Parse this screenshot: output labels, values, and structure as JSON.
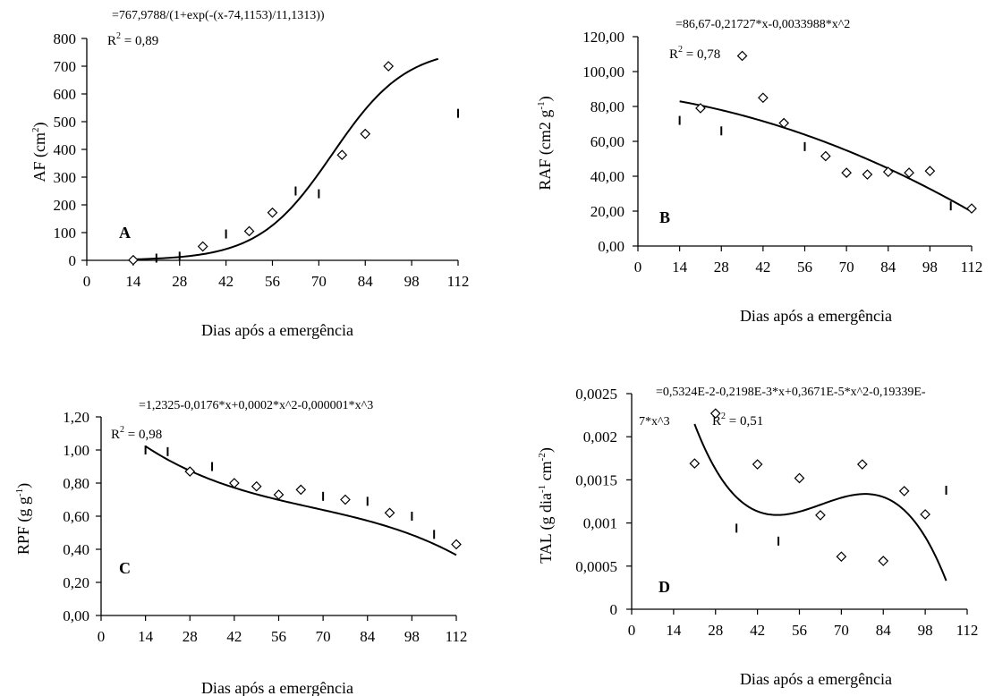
{
  "chart_data": [
    {
      "panel": "A",
      "type": "scatter",
      "equation": "=767,9788/(1+exp(-(x-74,1153)/11,1313))",
      "r2": "0,89",
      "r2_label": "R",
      "xlabel": "Dias após a emergência",
      "ylabel": "AF (cm",
      "ylabel_sup": "2",
      "ylabel_end": ")",
      "xlim": [
        0,
        112
      ],
      "ylim": [
        0,
        800
      ],
      "xticks": [
        "0",
        "14",
        "28",
        "42",
        "56",
        "70",
        "84",
        "98",
        "112"
      ],
      "yticks": [
        "0",
        "100",
        "200",
        "300",
        "400",
        "500",
        "600",
        "700",
        "800"
      ],
      "series": [
        {
          "marker": "diamond",
          "points": [
            [
              14,
              1
            ],
            [
              35,
              50
            ],
            [
              49,
              105
            ],
            [
              56,
              172
            ],
            [
              77,
              380
            ],
            [
              84,
              456
            ],
            [
              91,
              700
            ]
          ]
        },
        {
          "marker": "bar",
          "points": [
            [
              21,
              8
            ],
            [
              28,
              15
            ],
            [
              42,
              95
            ],
            [
              63,
              250
            ],
            [
              70,
              240
            ],
            [
              112,
              530
            ]
          ]
        }
      ],
      "curve": {
        "kind": "logistic",
        "a": 767.9788,
        "x0": 74.1153,
        "b": 11.1313,
        "from": 14,
        "to": 106
      }
    },
    {
      "panel": "B",
      "type": "scatter",
      "equation": "=86,67-0,21727*x-0,0033988*x^2",
      "r2": "0,78",
      "r2_label": "R",
      "xlabel": "Dias após a emergência",
      "ylabel": "RAF (cm2 g",
      "ylabel_sup": "-1",
      "ylabel_end": ")",
      "xlim": [
        0,
        112
      ],
      "ylim": [
        0,
        120
      ],
      "xticks": [
        "0",
        "14",
        "28",
        "42",
        "56",
        "70",
        "84",
        "98",
        "112"
      ],
      "yticks": [
        "0,00",
        "20,00",
        "40,00",
        "60,00",
        "80,00",
        "100,00",
        "120,00"
      ],
      "series": [
        {
          "marker": "diamond",
          "points": [
            [
              21,
              79
            ],
            [
              35,
              109
            ],
            [
              42,
              85
            ],
            [
              49,
              70.5
            ],
            [
              63,
              51.5
            ],
            [
              70,
              42
            ],
            [
              77,
              41
            ],
            [
              84,
              42.5
            ],
            [
              91,
              42
            ],
            [
              98,
              43
            ],
            [
              112,
              21.5
            ]
          ]
        },
        {
          "marker": "bar",
          "points": [
            [
              14,
              72
            ],
            [
              28,
              66
            ],
            [
              56,
              57
            ],
            [
              105,
              23
            ]
          ]
        }
      ],
      "curve": {
        "kind": "poly",
        "coefs": [
          86.67,
          -0.21727,
          -0.0033988
        ],
        "from": 14,
        "to": 112
      }
    },
    {
      "panel": "C",
      "type": "scatter",
      "equation": "=1,2325-0,0176*x+0,0002*x^2-0,000001*x^3",
      "r2": "0,98",
      "r2_label": "R",
      "xlabel": "Dias após a emergência",
      "ylabel": "RPF (g g",
      "ylabel_sup": "-1",
      "ylabel_end": ")",
      "xlim": [
        0,
        112
      ],
      "ylim": [
        0,
        1.2
      ],
      "xticks": [
        "0",
        "14",
        "28",
        "42",
        "56",
        "70",
        "84",
        "98",
        "112"
      ],
      "yticks": [
        "0,00",
        "0,20",
        "0,40",
        "0,60",
        "0,80",
        "1,00",
        "1,20"
      ],
      "series": [
        {
          "marker": "diamond",
          "points": [
            [
              28,
              0.87
            ],
            [
              42,
              0.8
            ],
            [
              49,
              0.78
            ],
            [
              56,
              0.73
            ],
            [
              63,
              0.76
            ],
            [
              77,
              0.7
            ],
            [
              91,
              0.62
            ],
            [
              112,
              0.43
            ]
          ]
        },
        {
          "marker": "bar",
          "points": [
            [
              14,
              1.0
            ],
            [
              21,
              0.99
            ],
            [
              35,
              0.9
            ],
            [
              70,
              0.72
            ],
            [
              84,
              0.69
            ],
            [
              98,
              0.6
            ],
            [
              105,
              0.49
            ]
          ]
        }
      ],
      "curve": {
        "kind": "poly",
        "coefs": [
          1.2325,
          -0.0176,
          0.0002,
          -1e-06
        ],
        "from": 14,
        "to": 112
      }
    },
    {
      "panel": "D",
      "type": "scatter",
      "equation": "=0,5324E-2-0,2198E-3*x+0,3671E-5*x^2-0,19339E-",
      "equation_cont": "7*x^3",
      "r2": "0,51",
      "r2_label": "R",
      "xlabel": "Dias após a emergência",
      "ylabel": "TAL (g dia",
      "ylabel_sup1": "-1",
      "ylabel_mid": " cm",
      "ylabel_sup2": "-2",
      "ylabel_end": ")",
      "xlim": [
        0,
        112
      ],
      "ylim": [
        0,
        0.0025
      ],
      "xticks": [
        "0",
        "14",
        "28",
        "42",
        "56",
        "70",
        "84",
        "98",
        "112"
      ],
      "yticks": [
        "0",
        "0,0005",
        "0,001",
        "0,0015",
        "0,002",
        "0,0025"
      ],
      "series": [
        {
          "marker": "diamond",
          "points": [
            [
              21,
              0.00169
            ],
            [
              28,
              0.00227
            ],
            [
              42,
              0.00168
            ],
            [
              56,
              0.00152
            ],
            [
              63,
              0.00109
            ],
            [
              70,
              0.00061
            ],
            [
              77,
              0.00168
            ],
            [
              84,
              0.00056
            ],
            [
              91,
              0.00137
            ],
            [
              98,
              0.0011
            ]
          ]
        },
        {
          "marker": "bar",
          "points": [
            [
              35,
              0.00094
            ],
            [
              49,
              0.00079
            ],
            [
              105,
              0.00138
            ]
          ]
        }
      ],
      "curve": {
        "kind": "poly",
        "coefs": [
          0.005324,
          -0.0002198,
          3.671e-06,
          -1.9339e-08
        ],
        "from": 21,
        "to": 105
      }
    }
  ]
}
